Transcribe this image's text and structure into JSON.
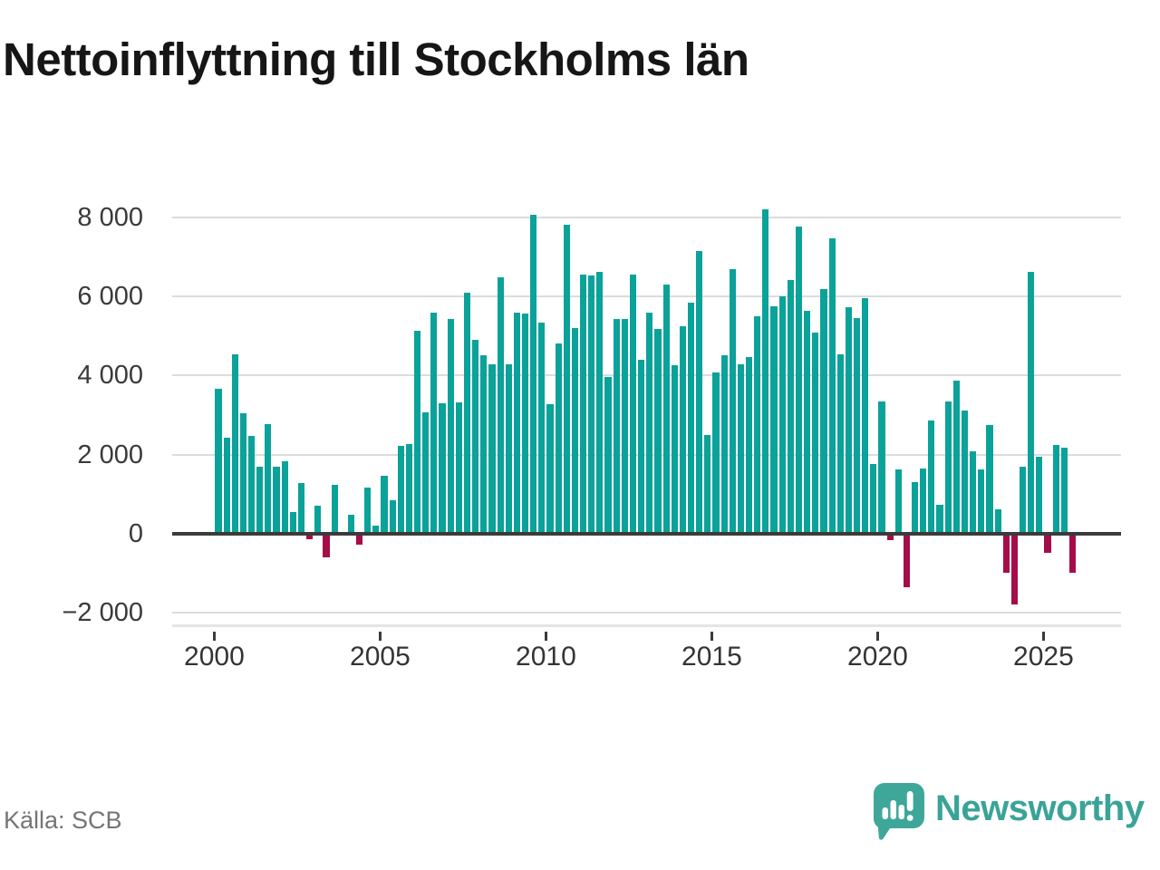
{
  "chart_data": {
    "type": "bar",
    "title": "Nettoinflyttning till Stockholms län",
    "source": "Källa: SCB",
    "frequency": "quarterly",
    "start_year": 2000,
    "years": [
      {
        "year": 2000,
        "quarters": [
          3660,
          2430,
          4540,
          3050
        ]
      },
      {
        "year": 2001,
        "quarters": [
          2480,
          1700,
          2760,
          1700
        ]
      },
      {
        "year": 2002,
        "quarters": [
          1830,
          550,
          1280,
          -140
        ]
      },
      {
        "year": 2003,
        "quarters": [
          700,
          -590,
          1230,
          0
        ]
      },
      {
        "year": 2004,
        "quarters": [
          480,
          -280,
          1170,
          195
        ]
      },
      {
        "year": 2005,
        "quarters": [
          1465,
          845,
          2220,
          2260
        ]
      },
      {
        "year": 2006,
        "quarters": [
          5120,
          3070,
          5580,
          3300
        ]
      },
      {
        "year": 2007,
        "quarters": [
          5430,
          3330,
          6100,
          4890
        ]
      },
      {
        "year": 2008,
        "quarters": [
          4520,
          4290,
          6470,
          4280
        ]
      },
      {
        "year": 2009,
        "quarters": [
          5590,
          5560,
          8060,
          5340
        ]
      },
      {
        "year": 2010,
        "quarters": [
          3280,
          4800,
          7800,
          5200
        ]
      },
      {
        "year": 2011,
        "quarters": [
          6550,
          6520,
          6630,
          3960
        ]
      },
      {
        "year": 2012,
        "quarters": [
          5420,
          5420,
          6540,
          4400
        ]
      },
      {
        "year": 2013,
        "quarters": [
          5590,
          5180,
          6300,
          4270
        ]
      },
      {
        "year": 2014,
        "quarters": [
          5250,
          5840,
          7140,
          2490
        ]
      },
      {
        "year": 2015,
        "quarters": [
          4080,
          4510,
          6690,
          4280
        ]
      },
      {
        "year": 2016,
        "quarters": [
          4460,
          5490,
          8190,
          5750
        ]
      },
      {
        "year": 2017,
        "quarters": [
          6000,
          6410,
          7770,
          5640
        ]
      },
      {
        "year": 2018,
        "quarters": [
          5080,
          6180,
          7460,
          4540
        ]
      },
      {
        "year": 2019,
        "quarters": [
          5715,
          5450,
          5960,
          1760
        ]
      },
      {
        "year": 2020,
        "quarters": [
          3350,
          -155,
          1620,
          -1350
        ]
      },
      {
        "year": 2021,
        "quarters": [
          1300,
          1640,
          2855,
          725
        ]
      },
      {
        "year": 2022,
        "quarters": [
          3340,
          3860,
          3120,
          2080
        ]
      },
      {
        "year": 2023,
        "quarters": [
          1630,
          2750,
          610,
          -990
        ]
      },
      {
        "year": 2024,
        "quarters": [
          -1790,
          1695,
          6620,
          1940
        ]
      },
      {
        "year": 2025,
        "quarters": [
          -480,
          2240,
          2170,
          -980
        ]
      }
    ],
    "x_ticks": [
      2000,
      2005,
      2010,
      2015,
      2020,
      2025
    ],
    "x_tick_labels": [
      "2000",
      "2005",
      "2010",
      "2015",
      "2020",
      "2025"
    ],
    "y_ticks": [
      8000,
      6000,
      4000,
      2000,
      0,
      -2000
    ],
    "y_tick_labels": [
      "8 000",
      "6 000",
      "4 000",
      "2 000",
      "0",
      "−2 000"
    ],
    "ylim": [
      -2350,
      8400
    ],
    "grid": "horizontal",
    "legend": "none",
    "colors": {
      "positive": "#0ba29a",
      "negative": "#a50d48",
      "gridline": "#dcdcdc",
      "zero_line": "#3b3b3b",
      "axis_text": "#3a3a3a"
    }
  },
  "branding": {
    "wordmark": "Newsworthy",
    "color": "#3aa398"
  }
}
